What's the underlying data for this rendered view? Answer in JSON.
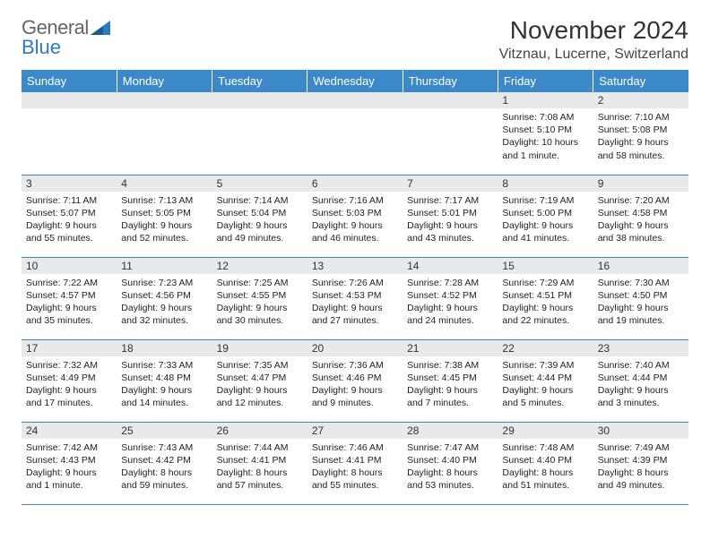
{
  "brand": {
    "part1": "General",
    "part2": "Blue"
  },
  "title": "November 2024",
  "location": "Vitznau, Lucerne, Switzerland",
  "colors": {
    "header_bg": "#3b89c9",
    "header_fg": "#ffffff",
    "daynum_bg": "#e8e9eb",
    "row_border": "#3b89c9",
    "brand_blue": "#2b7bbf",
    "page_bg": "#ffffff"
  },
  "typography": {
    "month_title_pt": 28,
    "location_pt": 16,
    "weekday_pt": 13,
    "daynum_pt": 12,
    "body_pt": 10.5,
    "logo_pt": 22
  },
  "weekdays": [
    "Sunday",
    "Monday",
    "Tuesday",
    "Wednesday",
    "Thursday",
    "Friday",
    "Saturday"
  ],
  "weeks": [
    [
      {
        "day": "",
        "lines": []
      },
      {
        "day": "",
        "lines": []
      },
      {
        "day": "",
        "lines": []
      },
      {
        "day": "",
        "lines": []
      },
      {
        "day": "",
        "lines": []
      },
      {
        "day": "1",
        "lines": [
          "Sunrise: 7:08 AM",
          "Sunset: 5:10 PM",
          "Daylight: 10 hours and 1 minute."
        ]
      },
      {
        "day": "2",
        "lines": [
          "Sunrise: 7:10 AM",
          "Sunset: 5:08 PM",
          "Daylight: 9 hours and 58 minutes."
        ]
      }
    ],
    [
      {
        "day": "3",
        "lines": [
          "Sunrise: 7:11 AM",
          "Sunset: 5:07 PM",
          "Daylight: 9 hours and 55 minutes."
        ]
      },
      {
        "day": "4",
        "lines": [
          "Sunrise: 7:13 AM",
          "Sunset: 5:05 PM",
          "Daylight: 9 hours and 52 minutes."
        ]
      },
      {
        "day": "5",
        "lines": [
          "Sunrise: 7:14 AM",
          "Sunset: 5:04 PM",
          "Daylight: 9 hours and 49 minutes."
        ]
      },
      {
        "day": "6",
        "lines": [
          "Sunrise: 7:16 AM",
          "Sunset: 5:03 PM",
          "Daylight: 9 hours and 46 minutes."
        ]
      },
      {
        "day": "7",
        "lines": [
          "Sunrise: 7:17 AM",
          "Sunset: 5:01 PM",
          "Daylight: 9 hours and 43 minutes."
        ]
      },
      {
        "day": "8",
        "lines": [
          "Sunrise: 7:19 AM",
          "Sunset: 5:00 PM",
          "Daylight: 9 hours and 41 minutes."
        ]
      },
      {
        "day": "9",
        "lines": [
          "Sunrise: 7:20 AM",
          "Sunset: 4:58 PM",
          "Daylight: 9 hours and 38 minutes."
        ]
      }
    ],
    [
      {
        "day": "10",
        "lines": [
          "Sunrise: 7:22 AM",
          "Sunset: 4:57 PM",
          "Daylight: 9 hours and 35 minutes."
        ]
      },
      {
        "day": "11",
        "lines": [
          "Sunrise: 7:23 AM",
          "Sunset: 4:56 PM",
          "Daylight: 9 hours and 32 minutes."
        ]
      },
      {
        "day": "12",
        "lines": [
          "Sunrise: 7:25 AM",
          "Sunset: 4:55 PM",
          "Daylight: 9 hours and 30 minutes."
        ]
      },
      {
        "day": "13",
        "lines": [
          "Sunrise: 7:26 AM",
          "Sunset: 4:53 PM",
          "Daylight: 9 hours and 27 minutes."
        ]
      },
      {
        "day": "14",
        "lines": [
          "Sunrise: 7:28 AM",
          "Sunset: 4:52 PM",
          "Daylight: 9 hours and 24 minutes."
        ]
      },
      {
        "day": "15",
        "lines": [
          "Sunrise: 7:29 AM",
          "Sunset: 4:51 PM",
          "Daylight: 9 hours and 22 minutes."
        ]
      },
      {
        "day": "16",
        "lines": [
          "Sunrise: 7:30 AM",
          "Sunset: 4:50 PM",
          "Daylight: 9 hours and 19 minutes."
        ]
      }
    ],
    [
      {
        "day": "17",
        "lines": [
          "Sunrise: 7:32 AM",
          "Sunset: 4:49 PM",
          "Daylight: 9 hours and 17 minutes."
        ]
      },
      {
        "day": "18",
        "lines": [
          "Sunrise: 7:33 AM",
          "Sunset: 4:48 PM",
          "Daylight: 9 hours and 14 minutes."
        ]
      },
      {
        "day": "19",
        "lines": [
          "Sunrise: 7:35 AM",
          "Sunset: 4:47 PM",
          "Daylight: 9 hours and 12 minutes."
        ]
      },
      {
        "day": "20",
        "lines": [
          "Sunrise: 7:36 AM",
          "Sunset: 4:46 PM",
          "Daylight: 9 hours and 9 minutes."
        ]
      },
      {
        "day": "21",
        "lines": [
          "Sunrise: 7:38 AM",
          "Sunset: 4:45 PM",
          "Daylight: 9 hours and 7 minutes."
        ]
      },
      {
        "day": "22",
        "lines": [
          "Sunrise: 7:39 AM",
          "Sunset: 4:44 PM",
          "Daylight: 9 hours and 5 minutes."
        ]
      },
      {
        "day": "23",
        "lines": [
          "Sunrise: 7:40 AM",
          "Sunset: 4:44 PM",
          "Daylight: 9 hours and 3 minutes."
        ]
      }
    ],
    [
      {
        "day": "24",
        "lines": [
          "Sunrise: 7:42 AM",
          "Sunset: 4:43 PM",
          "Daylight: 9 hours and 1 minute."
        ]
      },
      {
        "day": "25",
        "lines": [
          "Sunrise: 7:43 AM",
          "Sunset: 4:42 PM",
          "Daylight: 8 hours and 59 minutes."
        ]
      },
      {
        "day": "26",
        "lines": [
          "Sunrise: 7:44 AM",
          "Sunset: 4:41 PM",
          "Daylight: 8 hours and 57 minutes."
        ]
      },
      {
        "day": "27",
        "lines": [
          "Sunrise: 7:46 AM",
          "Sunset: 4:41 PM",
          "Daylight: 8 hours and 55 minutes."
        ]
      },
      {
        "day": "28",
        "lines": [
          "Sunrise: 7:47 AM",
          "Sunset: 4:40 PM",
          "Daylight: 8 hours and 53 minutes."
        ]
      },
      {
        "day": "29",
        "lines": [
          "Sunrise: 7:48 AM",
          "Sunset: 4:40 PM",
          "Daylight: 8 hours and 51 minutes."
        ]
      },
      {
        "day": "30",
        "lines": [
          "Sunrise: 7:49 AM",
          "Sunset: 4:39 PM",
          "Daylight: 8 hours and 49 minutes."
        ]
      }
    ]
  ]
}
